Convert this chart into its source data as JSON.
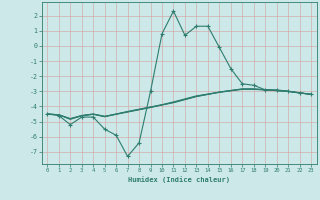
{
  "xlabel": "Humidex (Indice chaleur)",
  "background_color": "#cce8e8",
  "grid_color": "#aacccc",
  "line_color": "#2e7d6e",
  "xlim": [
    -0.5,
    23.5
  ],
  "ylim": [
    -7.8,
    2.9
  ],
  "yticks": [
    2,
    1,
    0,
    -1,
    -2,
    -3,
    -4,
    -5,
    -6,
    -7
  ],
  "xticks": [
    0,
    1,
    2,
    3,
    4,
    5,
    6,
    7,
    8,
    9,
    10,
    11,
    12,
    13,
    14,
    15,
    16,
    17,
    18,
    19,
    20,
    21,
    22,
    23
  ],
  "series1_x": [
    0,
    1,
    2,
    3,
    4,
    5,
    6,
    7,
    8,
    9,
    10,
    11,
    12,
    13,
    14,
    15,
    16,
    17,
    18,
    19,
    20,
    21,
    22,
    23
  ],
  "series1_y": [
    -4.5,
    -4.6,
    -5.2,
    -4.7,
    -4.7,
    -5.5,
    -5.9,
    -7.3,
    -6.4,
    -3.0,
    0.8,
    2.3,
    0.7,
    1.3,
    1.3,
    -0.1,
    -1.5,
    -2.5,
    -2.6,
    -2.9,
    -2.9,
    -3.0,
    -3.1,
    -3.2
  ],
  "series2_x": [
    0,
    1,
    2,
    3,
    4,
    5,
    6,
    7,
    8,
    9,
    10,
    11,
    12,
    13,
    14,
    15,
    16,
    17,
    18,
    19,
    20,
    21,
    22,
    23
  ],
  "series2_y": [
    -4.5,
    -4.55,
    -4.8,
    -4.6,
    -4.5,
    -4.65,
    -4.5,
    -4.35,
    -4.2,
    -4.05,
    -3.9,
    -3.75,
    -3.55,
    -3.35,
    -3.2,
    -3.05,
    -2.95,
    -2.85,
    -2.85,
    -2.9,
    -2.95,
    -3.0,
    -3.1,
    -3.2
  ],
  "series3_x": [
    0,
    1,
    2,
    3,
    4,
    5,
    6,
    7,
    8,
    9,
    10,
    11,
    12,
    13,
    14,
    15,
    16,
    17,
    18,
    19,
    20,
    21,
    22,
    23
  ],
  "series3_y": [
    -4.5,
    -4.55,
    -4.85,
    -4.62,
    -4.52,
    -4.68,
    -4.52,
    -4.37,
    -4.22,
    -4.07,
    -3.9,
    -3.73,
    -3.53,
    -3.33,
    -3.2,
    -3.07,
    -2.97,
    -2.87,
    -2.87,
    -2.91,
    -2.96,
    -3.01,
    -3.11,
    -3.2
  ],
  "series4_x": [
    0,
    1,
    2,
    3,
    4,
    5,
    6,
    7,
    8,
    9,
    10,
    11,
    12,
    13,
    14,
    15,
    16,
    17,
    18,
    19,
    20,
    21,
    22,
    23
  ],
  "series4_y": [
    -4.5,
    -4.55,
    -4.82,
    -4.6,
    -4.5,
    -4.66,
    -4.5,
    -4.33,
    -4.18,
    -4.03,
    -3.88,
    -3.7,
    -3.5,
    -3.3,
    -3.18,
    -3.05,
    -2.94,
    -2.84,
    -2.84,
    -2.89,
    -2.94,
    -2.99,
    -3.09,
    -3.2
  ]
}
